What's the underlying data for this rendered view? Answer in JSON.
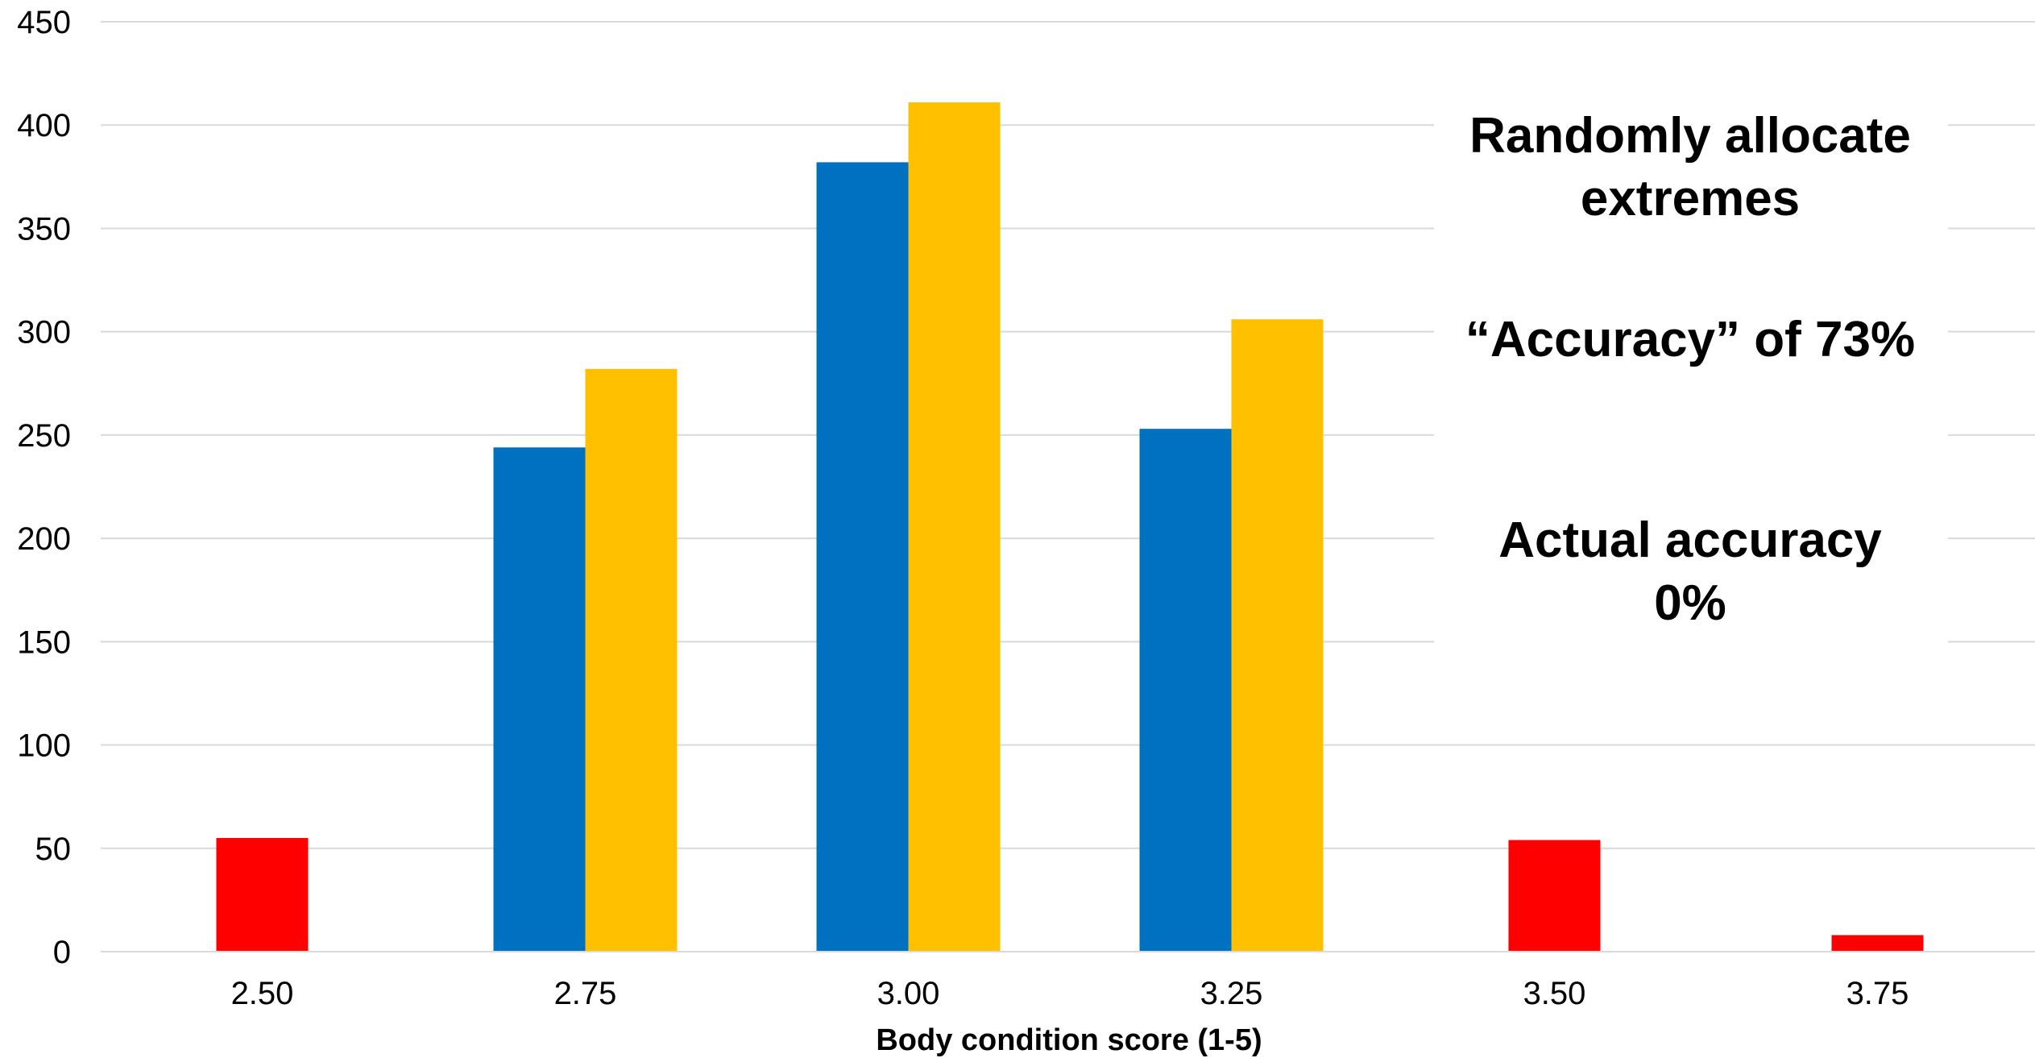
{
  "chart_data": {
    "type": "bar",
    "title": "",
    "xlabel": "Body condition score (1-5)",
    "ylabel": "",
    "categories": [
      "2.50",
      "2.75",
      "3.00",
      "3.25",
      "3.50",
      "3.75"
    ],
    "series": [
      {
        "color": "#ff0000",
        "values": [
          55,
          null,
          null,
          null,
          54,
          8
        ]
      },
      {
        "color": "#0070c0",
        "values": [
          null,
          244,
          382,
          253,
          null,
          null
        ]
      },
      {
        "color": "#ffc000",
        "values": [
          null,
          282,
          411,
          306,
          null,
          null
        ]
      }
    ],
    "ylim": [
      0,
      450
    ],
    "yticks": [
      0,
      50,
      100,
      150,
      200,
      250,
      300,
      350,
      400,
      450
    ],
    "grid": true,
    "annotations": [
      {
        "lines": [
          "Randomly allocate",
          "extremes"
        ]
      },
      {
        "lines": [
          "“Accuracy” of 73%"
        ]
      },
      {
        "lines": [
          "Actual accuracy",
          "0%"
        ]
      }
    ]
  }
}
